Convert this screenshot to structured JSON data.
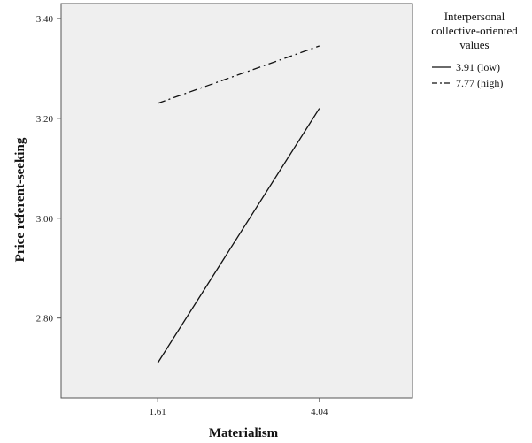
{
  "chart_data": {
    "type": "line",
    "xlabel": "Materialism",
    "ylabel": "Price referent-seeking",
    "categories": [
      "1.61",
      "4.04"
    ],
    "ylim": [
      2.64,
      3.43
    ],
    "yticks": [
      2.8,
      3.0,
      3.2,
      3.4
    ],
    "ytick_labels": [
      "2.80",
      "3.00",
      "3.20",
      "3.40"
    ],
    "grid": false,
    "legend_position": "right",
    "legend_title": [
      "Interpersonal",
      "collective-oriented",
      "values"
    ],
    "series": [
      {
        "name": "3.91 (low)",
        "values": [
          2.71,
          3.22
        ],
        "dash": "solid"
      },
      {
        "name": "7.77 (high)",
        "values": [
          3.23,
          3.345
        ],
        "dash": "dashdot"
      }
    ],
    "colors": {
      "plot_background": "#efefef",
      "frame": "#555555",
      "line": "#111111"
    }
  }
}
